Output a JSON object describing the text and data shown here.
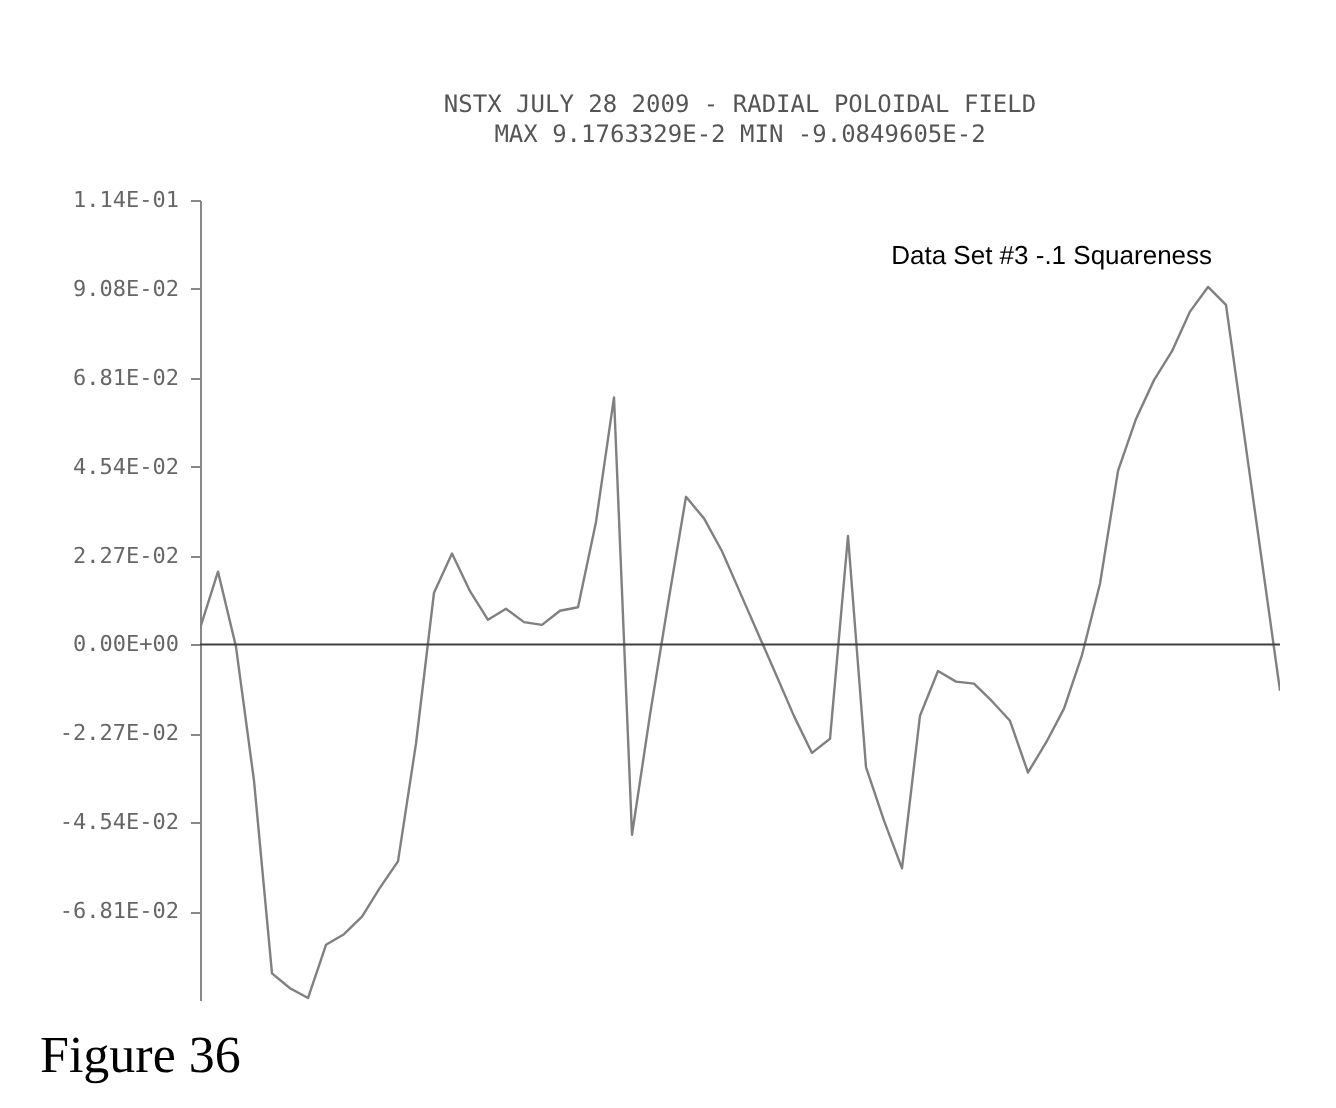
{
  "chart_data": {
    "type": "line",
    "title": "NSTX JULY 28 2009 - RADIAL POLOIDAL FIELD",
    "subtitle": "MAX 9.1763329E-2  MIN -9.0849605E-2",
    "annotations": [
      "Data Set #3 -.1 Squareness",
      "Figure 36"
    ],
    "categories": [
      null,
      null,
      null,
      null,
      null,
      null,
      null,
      null,
      null,
      null,
      null,
      null,
      null,
      null,
      null,
      null,
      null,
      null,
      null,
      null,
      null,
      null,
      null,
      null,
      null,
      null,
      null,
      null,
      null,
      null,
      null,
      null,
      null,
      null,
      null,
      null,
      null,
      null,
      null,
      null,
      null,
      null,
      null,
      null,
      null,
      null,
      null,
      null,
      null,
      null,
      null,
      null,
      null,
      null,
      null,
      null,
      null,
      null,
      null,
      null,
      null
    ],
    "series": [
      {
        "color": "#808080",
        "values": [
          0.0041,
          0.0186,
          -0.0006,
          -0.0348,
          -0.084,
          -0.0878,
          -0.0903,
          -0.0767,
          -0.074,
          -0.0695,
          -0.0621,
          -0.0554,
          -0.0253,
          0.0132,
          0.0232,
          0.0136,
          0.0063,
          0.0091,
          0.0057,
          0.005,
          0.0086,
          0.0095,
          0.0313,
          0.0631,
          -0.0486,
          -0.018,
          0.0104,
          0.0377,
          0.0322,
          0.0238,
          0.0133,
          0.0028,
          -0.0077,
          -0.0183,
          -0.0277,
          -0.0241,
          0.0277,
          -0.0313,
          -0.045,
          -0.0572,
          -0.0182,
          -0.0068,
          -0.0095,
          -0.01,
          -0.0145,
          -0.0195,
          -0.0327,
          -0.0251,
          -0.0164,
          -0.0027,
          0.0155,
          0.0443,
          0.0576,
          0.0675,
          0.0749,
          0.085,
          0.0913,
          0.0867,
          0.0539,
          0.0211,
          -0.0118
        ]
      }
    ],
    "ylim": [
      -0.0908,
      0.1135
    ],
    "yticks": [
      {
        "value": 0.1135,
        "label": "1.14E-01"
      },
      {
        "value": 0.0908,
        "label": "9.08E-02"
      },
      {
        "value": 0.0681,
        "label": "6.81E-02"
      },
      {
        "value": 0.0454,
        "label": "4.54E-02"
      },
      {
        "value": 0.0227,
        "label": "2.27E-02"
      },
      {
        "value": 0,
        "label": "0.00E+00"
      },
      {
        "value": -0.0227,
        "label": "-2.27E-02"
      },
      {
        "value": -0.0454,
        "label": "-4.54E-02"
      },
      {
        "value": -0.0681,
        "label": "-6.81E-02"
      }
    ],
    "tick_labels": "y",
    "grid": false,
    "ref_lines": [
      {
        "axis": "y",
        "value": 0,
        "color": "#404040"
      }
    ]
  }
}
